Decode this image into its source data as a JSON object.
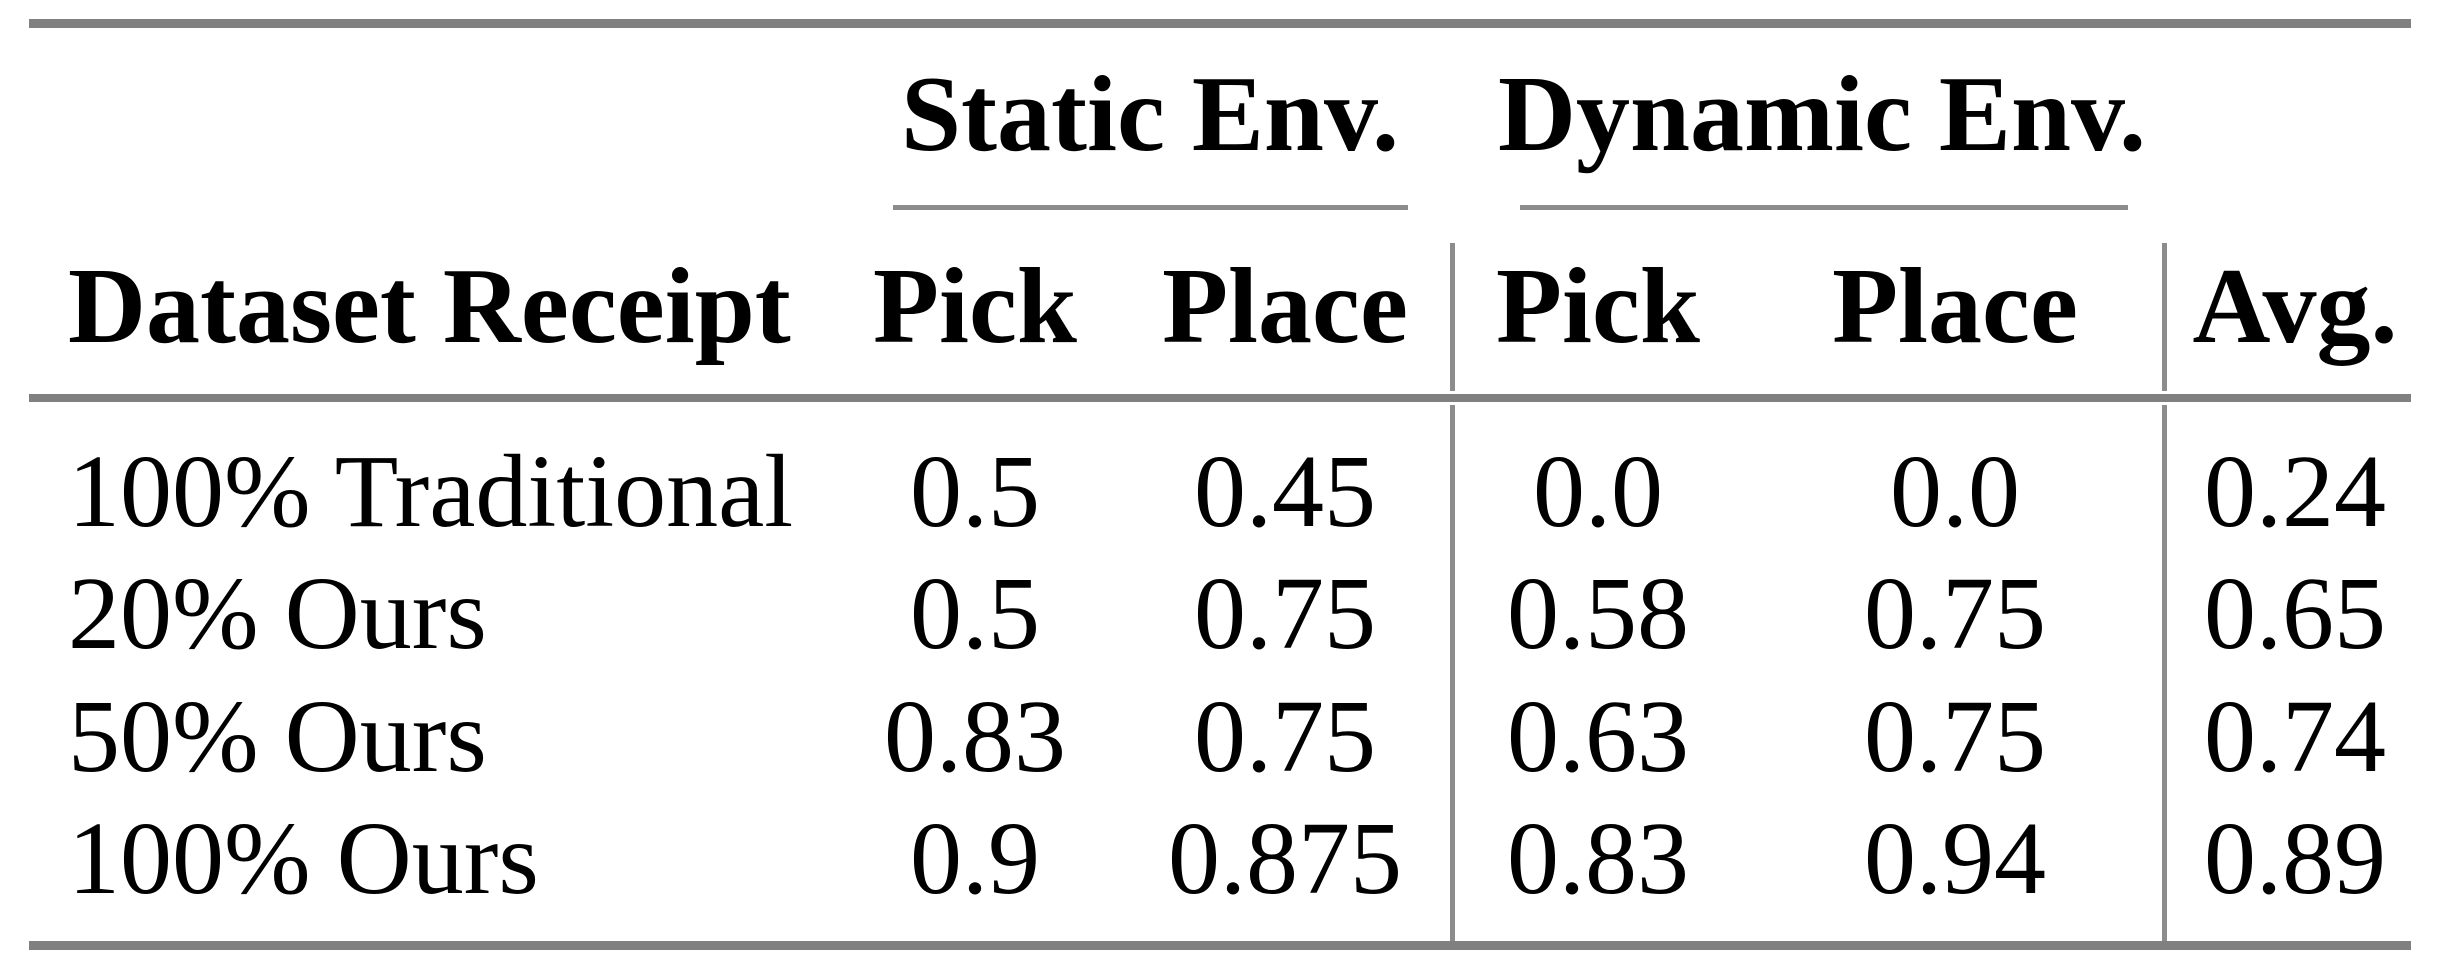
{
  "table": {
    "group_headers": [
      {
        "label": "Static Env."
      },
      {
        "label": "Dynamic Env."
      }
    ],
    "column_headers": {
      "row_label": "Dataset Receipt",
      "static_pick": "Pick",
      "static_place": "Place",
      "dynamic_pick": "Pick",
      "dynamic_place": "Place",
      "avg": "Avg."
    },
    "rows": [
      {
        "label": "100% Traditional",
        "static_pick": "0.5",
        "static_place": "0.45",
        "dynamic_pick": "0.0",
        "dynamic_place": "0.0",
        "avg": "0.24"
      },
      {
        "label": "20% Ours",
        "static_pick": "0.5",
        "static_place": "0.75",
        "dynamic_pick": "0.58",
        "dynamic_place": "0.75",
        "avg": "0.65"
      },
      {
        "label": "50% Ours",
        "static_pick": "0.83",
        "static_place": "0.75",
        "dynamic_pick": "0.63",
        "dynamic_place": "0.75",
        "avg": "0.74"
      },
      {
        "label": "100% Ours",
        "static_pick": "0.9",
        "static_place": "0.875",
        "dynamic_pick": "0.83",
        "dynamic_place": "0.94",
        "avg": "0.89"
      }
    ],
    "colors": {
      "rule_heavy": "#808080",
      "rule_light": "#8c8c8c",
      "text": "#000000",
      "background": "#ffffff"
    }
  },
  "chart_data": {
    "type": "table",
    "columns": [
      "Dataset Receipt",
      "Static Env. Pick",
      "Static Env. Place",
      "Dynamic Env. Pick",
      "Dynamic Env. Place",
      "Avg."
    ],
    "rows": [
      [
        "100% Traditional",
        0.5,
        0.45,
        0.0,
        0.0,
        0.24
      ],
      [
        "20% Ours",
        0.5,
        0.75,
        0.58,
        0.75,
        0.65
      ],
      [
        "50% Ours",
        0.83,
        0.75,
        0.63,
        0.75,
        0.74
      ],
      [
        "100% Ours",
        0.9,
        0.875,
        0.83,
        0.94,
        0.89
      ]
    ]
  }
}
